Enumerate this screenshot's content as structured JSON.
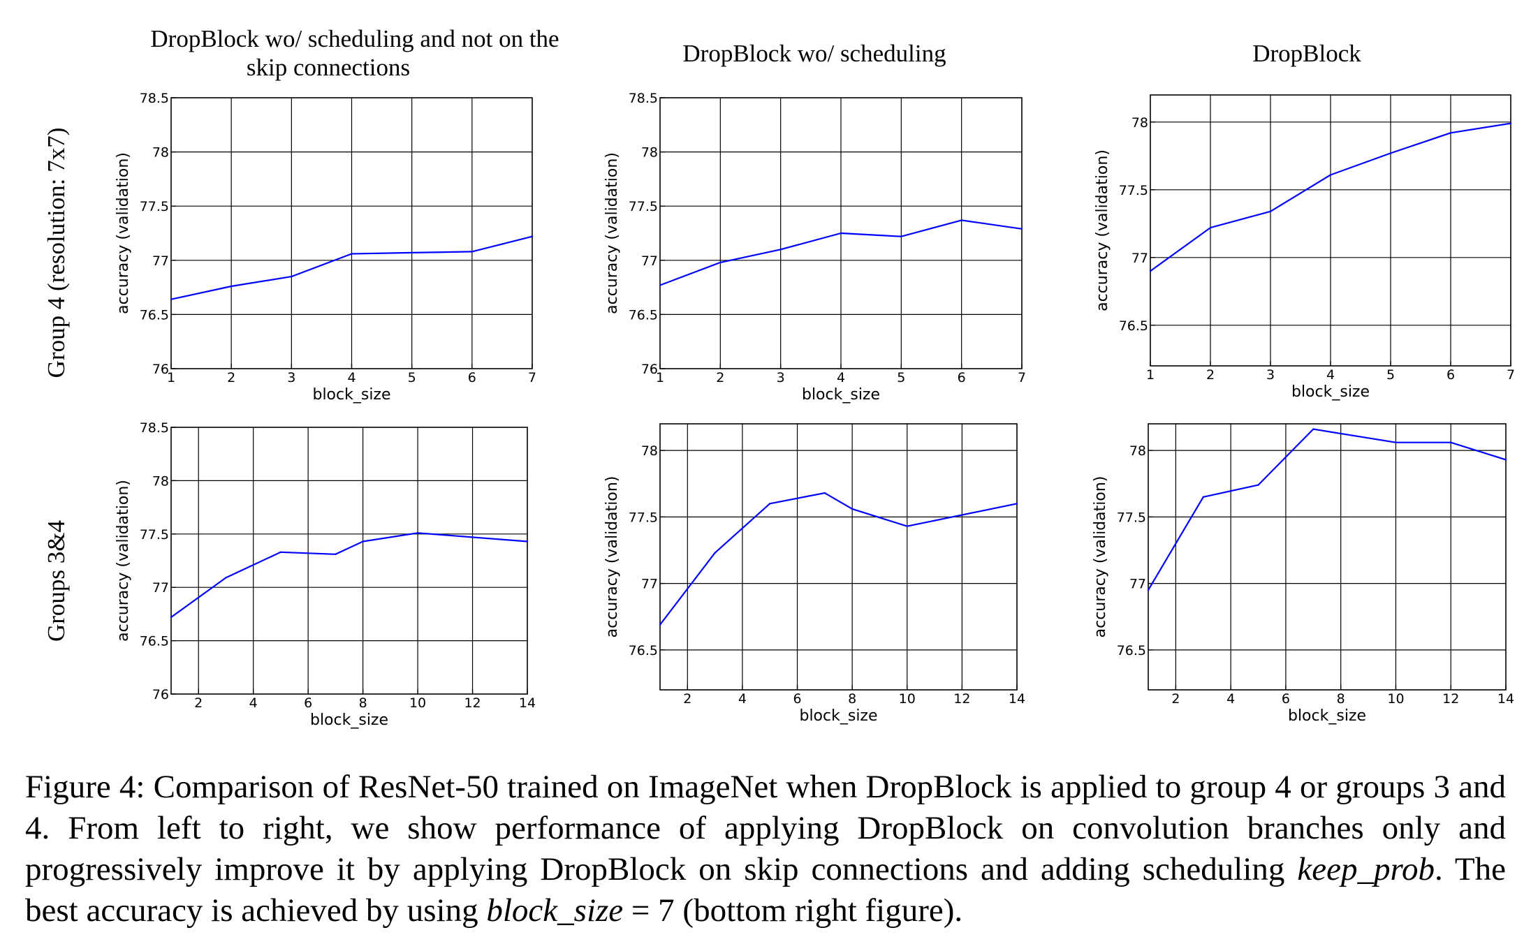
{
  "figure": {
    "column_titles": [
      "DropBlock wo/ scheduling and not on the skip connections",
      "DropBlock wo/ scheduling",
      "DropBlock"
    ],
    "row_labels": [
      "Group 4 (resolution: 7x7)",
      "Groups 3&4"
    ],
    "line_color": "#0000ff"
  },
  "chart_data": [
    {
      "type": "line",
      "title": "DropBlock wo/ scheduling and not on the skip connections",
      "row_label": "Group 4 (resolution: 7x7)",
      "xlabel": "block_size",
      "ylabel": "accuracy (validation)",
      "x": [
        1,
        2,
        3,
        4,
        5,
        6,
        7
      ],
      "y": [
        76.64,
        76.76,
        76.85,
        77.06,
        77.07,
        77.08,
        77.22
      ],
      "xlim": [
        1,
        7
      ],
      "ylim": [
        76.0,
        78.5
      ],
      "xticks": [
        1,
        2,
        3,
        4,
        5,
        6,
        7
      ],
      "yticks": [
        76.0,
        76.5,
        77.0,
        77.5,
        78.0,
        78.5
      ],
      "grid": true
    },
    {
      "type": "line",
      "title": "DropBlock wo/ scheduling",
      "row_label": "Group 4 (resolution: 7x7)",
      "xlabel": "block_size",
      "ylabel": "accuracy (validation)",
      "x": [
        1,
        2,
        3,
        4,
        5,
        6,
        7
      ],
      "y": [
        76.77,
        76.98,
        77.1,
        77.25,
        77.22,
        77.37,
        77.29
      ],
      "xlim": [
        1,
        7
      ],
      "ylim": [
        76.0,
        78.5
      ],
      "xticks": [
        1,
        2,
        3,
        4,
        5,
        6,
        7
      ],
      "yticks": [
        76.0,
        76.5,
        77.0,
        77.5,
        78.0,
        78.5
      ],
      "grid": true
    },
    {
      "type": "line",
      "title": "DropBlock",
      "row_label": "Group 4 (resolution: 7x7)",
      "xlabel": "block_size",
      "ylabel": "accuracy (validation)",
      "x": [
        1,
        2,
        3,
        4,
        5,
        6,
        7
      ],
      "y": [
        76.9,
        77.22,
        77.34,
        77.61,
        77.77,
        77.92,
        77.99
      ],
      "xlim": [
        1,
        7
      ],
      "ylim": [
        76.2,
        78.2
      ],
      "xticks": [
        1,
        2,
        3,
        4,
        5,
        6,
        7
      ],
      "yticks": [
        76.5,
        77.0,
        77.5,
        78.0
      ],
      "grid": true
    },
    {
      "type": "line",
      "title": "",
      "row_label": "Groups 3&4",
      "xlabel": "block_size",
      "ylabel": "accuracy (validation)",
      "x": [
        1,
        3,
        5,
        7,
        8,
        10,
        14
      ],
      "y": [
        76.72,
        77.09,
        77.33,
        77.31,
        77.43,
        77.51,
        77.43
      ],
      "xlim": [
        1,
        14
      ],
      "ylim": [
        76.0,
        78.5
      ],
      "xticks": [
        2,
        4,
        6,
        8,
        10,
        12,
        14
      ],
      "yticks": [
        76.0,
        76.5,
        77.0,
        77.5,
        78.0,
        78.5
      ],
      "grid": true
    },
    {
      "type": "line",
      "title": "",
      "row_label": "Groups 3&4",
      "xlabel": "block_size",
      "ylabel": "accuracy (validation)",
      "x": [
        1,
        3,
        5,
        7,
        8,
        10,
        14
      ],
      "y": [
        76.69,
        77.23,
        77.6,
        77.68,
        77.56,
        77.43,
        77.6
      ],
      "xlim": [
        1,
        14
      ],
      "ylim": [
        76.2,
        78.2
      ],
      "xticks": [
        2,
        4,
        6,
        8,
        10,
        12,
        14
      ],
      "yticks": [
        76.5,
        77.0,
        77.5,
        78.0
      ],
      "grid": true
    },
    {
      "type": "line",
      "title": "",
      "row_label": "Groups 3&4",
      "xlabel": "block_size",
      "ylabel": "accuracy (validation)",
      "x": [
        1,
        3,
        5,
        7,
        10,
        12,
        14
      ],
      "y": [
        76.95,
        77.65,
        77.74,
        78.16,
        78.06,
        78.06,
        77.93
      ],
      "xlim": [
        1,
        14
      ],
      "ylim": [
        76.2,
        78.2
      ],
      "xticks": [
        2,
        4,
        6,
        8,
        10,
        12,
        14
      ],
      "yticks": [
        76.5,
        77.0,
        77.5,
        78.0
      ],
      "grid": true
    }
  ],
  "caption": {
    "part1": "Figure 4: Comparison of ResNet-50 trained on ImageNet when DropBlock is applied to group 4 or groups 3 and 4. From left to right, we show performance of applying DropBlock on convolution branches only and progressively improve it by applying DropBlock on skip connections and adding scheduling ",
    "math1": "keep_prob",
    "part2": ". The best accuracy is achieved by using ",
    "math2": "block_size",
    "part3": " = 7 (bottom right figure)."
  }
}
